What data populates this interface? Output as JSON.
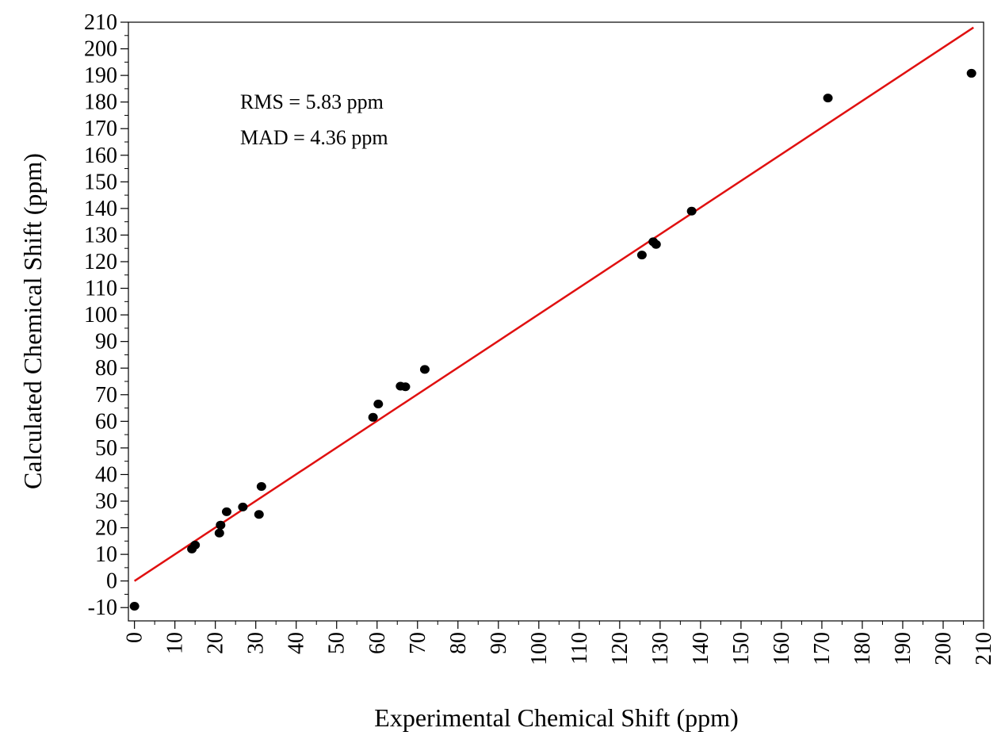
{
  "chart_data": {
    "type": "scatter",
    "xlabel": "Experimental Chemical Shift (ppm)",
    "ylabel": "Calculated Chemical Shift (ppm)",
    "xlim": [
      -1.5,
      210
    ],
    "ylim": [
      -15,
      210
    ],
    "xticks": [
      0,
      10,
      20,
      30,
      40,
      50,
      60,
      70,
      80,
      90,
      100,
      110,
      120,
      130,
      140,
      150,
      160,
      170,
      180,
      190,
      200,
      210
    ],
    "yticks": [
      -10,
      0,
      10,
      20,
      30,
      40,
      50,
      60,
      70,
      80,
      90,
      100,
      110,
      120,
      130,
      140,
      150,
      160,
      170,
      180,
      190,
      200,
      210
    ],
    "grid": false,
    "annotations": [
      "RMS = 5.83 ppm",
      "MAD = 4.36 ppm"
    ],
    "fit_line": {
      "x": [
        0,
        207.5
      ],
      "y": [
        0,
        208
      ],
      "color": "#e01010"
    },
    "point_color": "#000000",
    "points": [
      {
        "x": 0.0,
        "y": -9.5
      },
      {
        "x": 14.2,
        "y": 12.0
      },
      {
        "x": 15.0,
        "y": 13.5
      },
      {
        "x": 21.0,
        "y": 18.0
      },
      {
        "x": 21.3,
        "y": 21.0
      },
      {
        "x": 22.8,
        "y": 26.0
      },
      {
        "x": 26.8,
        "y": 27.8
      },
      {
        "x": 30.8,
        "y": 25.0
      },
      {
        "x": 31.4,
        "y": 35.5
      },
      {
        "x": 59.0,
        "y": 61.5
      },
      {
        "x": 60.3,
        "y": 66.5
      },
      {
        "x": 65.8,
        "y": 73.2
      },
      {
        "x": 67.0,
        "y": 73.0
      },
      {
        "x": 71.8,
        "y": 79.5
      },
      {
        "x": 125.5,
        "y": 122.5
      },
      {
        "x": 128.3,
        "y": 127.5
      },
      {
        "x": 129.0,
        "y": 126.5
      },
      {
        "x": 137.8,
        "y": 139.0
      },
      {
        "x": 171.5,
        "y": 181.5
      },
      {
        "x": 207.0,
        "y": 190.8
      }
    ]
  }
}
